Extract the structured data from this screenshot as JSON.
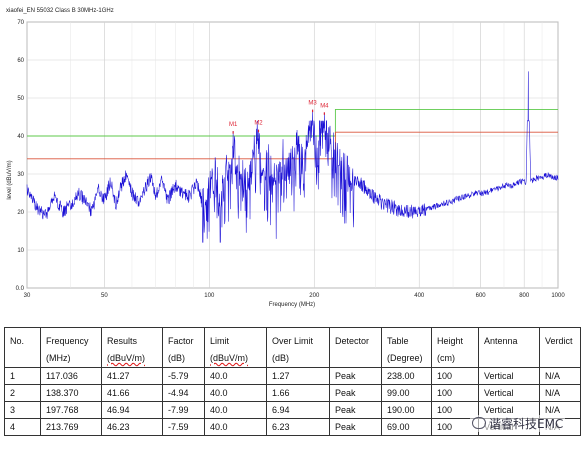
{
  "chart_data": {
    "type": "line",
    "title": "xiaofei_EN 55032 Class B 30MHz-1GHz",
    "xlabel": "Frequency (MHz)",
    "ylabel": "level (dBuV/m)",
    "xscale": "log",
    "xlim": [
      30,
      1000
    ],
    "ylim": [
      0,
      70
    ],
    "xticks": [
      30,
      50,
      100,
      200,
      400,
      600,
      800,
      1000
    ],
    "xtick_labels": [
      "30",
      "50",
      "100",
      "200",
      "400",
      "600",
      "800",
      "1000"
    ],
    "yticks": [
      0,
      10,
      20,
      30,
      40,
      50,
      60,
      70
    ],
    "ytick_labels": [
      "0.0",
      "10",
      "20",
      "30",
      "40",
      "50",
      "60",
      "70"
    ],
    "grid": true,
    "series": [
      {
        "name": "",
        "color": "#1a0fd6",
        "points": [
          [
            30,
            26
          ],
          [
            32,
            21
          ],
          [
            34,
            19
          ],
          [
            36,
            24
          ],
          [
            38,
            20
          ],
          [
            40,
            22
          ],
          [
            42,
            25
          ],
          [
            44,
            23
          ],
          [
            46,
            20
          ],
          [
            48,
            26
          ],
          [
            50,
            23
          ],
          [
            52,
            28
          ],
          [
            54,
            22
          ],
          [
            56,
            27
          ],
          [
            58,
            30
          ],
          [
            60,
            25
          ],
          [
            63,
            22
          ],
          [
            66,
            27
          ],
          [
            68,
            29
          ],
          [
            70,
            24
          ],
          [
            73,
            28
          ],
          [
            76,
            23
          ],
          [
            80,
            27
          ],
          [
            84,
            25
          ],
          [
            88,
            24
          ],
          [
            92,
            28
          ],
          [
            96,
            22
          ],
          [
            100,
            27
          ],
          [
            104,
            30
          ],
          [
            108,
            24
          ],
          [
            112,
            32
          ],
          [
            115,
            27
          ],
          [
            117.036,
            41.3
          ],
          [
            120,
            29
          ],
          [
            125,
            33
          ],
          [
            130,
            27
          ],
          [
            134,
            35
          ],
          [
            138.37,
            41.7
          ],
          [
            142,
            30
          ],
          [
            148,
            34
          ],
          [
            155,
            28
          ],
          [
            162,
            36
          ],
          [
            170,
            31
          ],
          [
            178,
            38
          ],
          [
            186,
            32
          ],
          [
            192,
            40
          ],
          [
            197.768,
            46.9
          ],
          [
            203,
            38
          ],
          [
            208,
            42
          ],
          [
            213.769,
            46.2
          ],
          [
            218,
            40
          ],
          [
            224,
            38
          ],
          [
            230,
            35
          ],
          [
            240,
            33
          ],
          [
            250,
            30
          ],
          [
            262,
            28
          ],
          [
            275,
            27
          ],
          [
            290,
            25
          ],
          [
            305,
            23
          ],
          [
            320,
            22
          ],
          [
            340,
            21
          ],
          [
            360,
            20
          ],
          [
            380,
            20
          ],
          [
            400,
            20
          ],
          [
            430,
            21
          ],
          [
            460,
            22
          ],
          [
            500,
            23
          ],
          [
            540,
            24
          ],
          [
            580,
            25
          ],
          [
            620,
            25
          ],
          [
            660,
            26
          ],
          [
            700,
            27
          ],
          [
            740,
            27
          ],
          [
            780,
            28
          ],
          [
            810,
            28
          ],
          [
            822,
            57
          ],
          [
            835,
            28
          ],
          [
            870,
            29
          ],
          [
            900,
            29
          ],
          [
            940,
            30
          ],
          [
            970,
            29
          ],
          [
            1000,
            29
          ]
        ]
      }
    ],
    "limit_lines": [
      {
        "name": "",
        "color": "#5cc94a",
        "points": [
          [
            30,
            40
          ],
          [
            230,
            40
          ],
          [
            230,
            47
          ],
          [
            1000,
            47
          ]
        ]
      },
      {
        "name": "",
        "color": "#d9553a",
        "points": [
          [
            30,
            34
          ],
          [
            230,
            34
          ],
          [
            230,
            41
          ],
          [
            1000,
            41
          ]
        ]
      }
    ],
    "markers": [
      {
        "label": "M1",
        "x": 117.036,
        "y": 41.27
      },
      {
        "label": "M2",
        "x": 138.37,
        "y": 41.66
      },
      {
        "label": "M3",
        "x": 197.768,
        "y": 46.94
      },
      {
        "label": "M4",
        "x": 213.769,
        "y": 46.23
      }
    ]
  },
  "table": {
    "headers": [
      [
        "No.",
        ""
      ],
      [
        "Frequency",
        "(MHz)"
      ],
      [
        "Results",
        "(dBuV/m)"
      ],
      [
        "Factor",
        "(dB)"
      ],
      [
        "Limit",
        "(dBuV/m)"
      ],
      [
        "Over Limit",
        "(dB)"
      ],
      [
        "Detector",
        ""
      ],
      [
        "Table",
        "(Degree)"
      ],
      [
        "Height",
        "(cm)"
      ],
      [
        "Antenna",
        ""
      ],
      [
        "Verdict",
        ""
      ]
    ],
    "rows": [
      [
        "1",
        "117.036",
        "41.27",
        "-5.79",
        "40.0",
        "1.27",
        "Peak",
        "238.00",
        "100",
        "Vertical",
        "N/A"
      ],
      [
        "2",
        "138.370",
        "41.66",
        "-4.94",
        "40.0",
        "1.66",
        "Peak",
        "99.00",
        "100",
        "Vertical",
        "N/A"
      ],
      [
        "3",
        "197.768",
        "46.94",
        "-7.99",
        "40.0",
        "6.94",
        "Peak",
        "190.00",
        "100",
        "Vertical",
        "N/A"
      ],
      [
        "4",
        "213.769",
        "46.23",
        "-7.59",
        "40.0",
        "6.23",
        "Peak",
        "69.00",
        "100",
        "Vertical",
        "N/A"
      ]
    ]
  },
  "watermark": {
    "text": "谐睿科技EMC"
  }
}
